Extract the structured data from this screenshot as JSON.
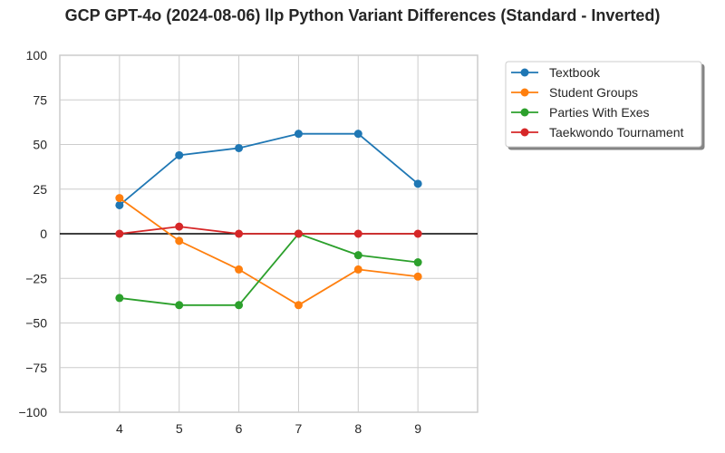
{
  "chart_data": {
    "type": "line",
    "title": "GCP GPT-4o (2024-08-06) llp Python Variant Differences (Standard - Inverted)",
    "xlabel": "",
    "ylabel": "",
    "x": [
      4,
      5,
      6,
      7,
      8,
      9
    ],
    "xlim": [
      3,
      10
    ],
    "ylim": [
      -100,
      100
    ],
    "yticks": [
      100,
      75,
      50,
      25,
      0,
      -25,
      -50,
      -75,
      -100
    ],
    "ytick_labels": [
      "100",
      "75",
      "50",
      "25",
      "0",
      "−25",
      "−50",
      "−75",
      "−100"
    ],
    "xticks": [
      4,
      5,
      6,
      7,
      8,
      9
    ],
    "grid": true,
    "zero_line": true,
    "legend_position": "outside-top-right",
    "series": [
      {
        "name": "Textbook",
        "color": "#1f77b4",
        "values": [
          16,
          44,
          48,
          56,
          56,
          28
        ]
      },
      {
        "name": "Student Groups",
        "color": "#ff7f0e",
        "values": [
          20,
          -4,
          -20,
          -40,
          -20,
          -24
        ]
      },
      {
        "name": "Parties With Exes",
        "color": "#2ca02c",
        "values": [
          -36,
          -40,
          -40,
          0,
          -12,
          -16
        ]
      },
      {
        "name": "Taekwondo Tournament",
        "color": "#d62728",
        "values": [
          0,
          4,
          0,
          0,
          0,
          0
        ]
      }
    ]
  }
}
